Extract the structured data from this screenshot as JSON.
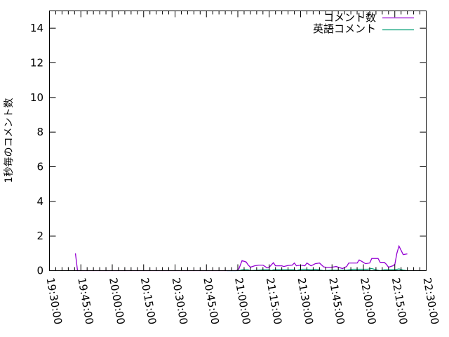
{
  "chart_data": {
    "type": "line",
    "title": "",
    "xlabel": "",
    "ylabel": "1秒毎のコメント数",
    "xlim": [
      "19:30:00",
      "22:30:00"
    ],
    "ylim": [
      0,
      15
    ],
    "x_ticks": [
      "19:30:00",
      "19:45:00",
      "20:00:00",
      "20:15:00",
      "20:30:00",
      "20:45:00",
      "21:00:00",
      "21:15:00",
      "21:30:00",
      "21:45:00",
      "22:00:00",
      "22:15:00",
      "22:30:00"
    ],
    "y_ticks": [
      "0",
      "2",
      "4",
      "6",
      "8",
      "10",
      "12",
      "14"
    ],
    "grid": false,
    "legend": "top-right",
    "series": [
      {
        "name": "コメント数",
        "color": "#9400d3",
        "points": [
          [
            "19:42:24",
            1.0
          ],
          [
            "19:43:24",
            0
          ],
          [
            "20:54:48",
            0
          ],
          [
            "20:59:12",
            0
          ],
          [
            "21:00:30",
            0.1
          ],
          [
            "21:02:00",
            0.58
          ],
          [
            "21:04:00",
            0.5
          ],
          [
            "21:05:00",
            0.32
          ],
          [
            "21:06:00",
            0.2
          ],
          [
            "21:08:00",
            0.28
          ],
          [
            "21:10:00",
            0.32
          ],
          [
            "21:12:00",
            0.32
          ],
          [
            "21:14:00",
            0.16
          ],
          [
            "21:15:00",
            0.2
          ],
          [
            "21:17:00",
            0.46
          ],
          [
            "21:18:00",
            0.28
          ],
          [
            "21:21:00",
            0.28
          ],
          [
            "21:22:00",
            0.24
          ],
          [
            "21:24:00",
            0.3
          ],
          [
            "21:26:00",
            0.32
          ],
          [
            "21:27:00",
            0.44
          ],
          [
            "21:28:00",
            0.28
          ],
          [
            "21:30:00",
            0.32
          ],
          [
            "21:32:00",
            0.28
          ],
          [
            "21:33:00",
            0.44
          ],
          [
            "21:35:00",
            0.28
          ],
          [
            "21:37:00",
            0.4
          ],
          [
            "21:39:00",
            0.44
          ],
          [
            "21:41:00",
            0.22
          ],
          [
            "21:42:00",
            0.2
          ],
          [
            "21:45:00",
            0.2
          ],
          [
            "21:47:00",
            0.24
          ],
          [
            "21:48:00",
            0.2
          ],
          [
            "21:50:00",
            0.12
          ],
          [
            "21:52:00",
            0.24
          ],
          [
            "21:53:00",
            0.44
          ],
          [
            "21:56:00",
            0.44
          ],
          [
            "21:57:00",
            0.44
          ],
          [
            "21:58:00",
            0.62
          ],
          [
            "22:00:00",
            0.48
          ],
          [
            "22:01:00",
            0.4
          ],
          [
            "22:03:00",
            0.44
          ],
          [
            "22:04:00",
            0.7
          ],
          [
            "22:07:00",
            0.7
          ],
          [
            "22:08:00",
            0.48
          ],
          [
            "22:10:00",
            0.48
          ],
          [
            "22:11:00",
            0.36
          ],
          [
            "22:12:00",
            0.2
          ],
          [
            "22:14:00",
            0.28
          ],
          [
            "22:15:00",
            0.36
          ],
          [
            "22:16:00",
            1.0
          ],
          [
            "22:17:00",
            1.42
          ],
          [
            "22:19:00",
            0.93
          ],
          [
            "22:21:00",
            0.97
          ]
        ]
      },
      {
        "name": "英語コメント",
        "color": "#009e73",
        "points": [
          [
            "20:54:48",
            0
          ],
          [
            "21:00:30",
            0
          ],
          [
            "21:02:00",
            0.05
          ],
          [
            "21:05:00",
            0.05
          ],
          [
            "21:06:00",
            0
          ],
          [
            "21:12:00",
            0.05
          ],
          [
            "21:15:00",
            0.05
          ],
          [
            "21:16:00",
            0
          ],
          [
            "21:17:00",
            0.05
          ],
          [
            "21:27:00",
            0.05
          ],
          [
            "21:28:00",
            0
          ],
          [
            "21:30:00",
            0.08
          ],
          [
            "21:33:00",
            0.08
          ],
          [
            "21:35:00",
            0.05
          ],
          [
            "21:37:00",
            0.08
          ],
          [
            "21:39:00",
            0.05
          ],
          [
            "21:41:00",
            0
          ],
          [
            "21:45:00",
            0.03
          ],
          [
            "21:52:00",
            0.03
          ],
          [
            "21:55:00",
            0.08
          ],
          [
            "22:02:00",
            0.08
          ],
          [
            "22:04:00",
            0.12
          ],
          [
            "22:06:00",
            0.05
          ],
          [
            "22:08:00",
            0
          ],
          [
            "22:10:00",
            0.05
          ],
          [
            "22:15:00",
            0.05
          ],
          [
            "22:17:00",
            0.1
          ],
          [
            "22:19:00",
            0.03
          ],
          [
            "22:21:00",
            0
          ]
        ]
      }
    ]
  }
}
